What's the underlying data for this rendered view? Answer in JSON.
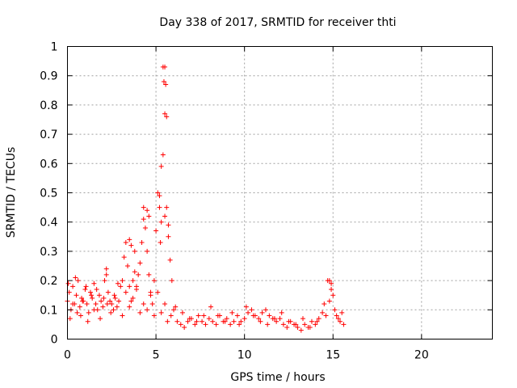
{
  "chart_data": {
    "type": "scatter",
    "title": "Day 338 of 2017, SRMTID for receiver thti",
    "xlabel": "GPS time / hours",
    "ylabel": "SRMTID / TECUs",
    "xlim": [
      0,
      24
    ],
    "ylim": [
      0,
      1
    ],
    "xticks": [
      0,
      5,
      10,
      15,
      20
    ],
    "xtick_labels": [
      "0",
      "5",
      "10",
      "15",
      "20"
    ],
    "yticks": [
      0,
      0.1,
      0.2,
      0.3,
      0.4,
      0.5,
      0.6,
      0.7,
      0.8,
      0.9,
      1
    ],
    "ytick_labels": [
      "0",
      "0.1",
      "0.2",
      "0.3",
      "0.4",
      "0.5",
      "0.6",
      "0.7",
      "0.8",
      "0.9",
      "1"
    ],
    "grid": true,
    "marker": "+",
    "color": "#ff0000",
    "series": [
      {
        "name": "SRMTID",
        "x": [
          0.0,
          0.1,
          0.2,
          0.3,
          0.4,
          0.5,
          0.6,
          0.7,
          0.8,
          0.9,
          1.0,
          1.1,
          1.2,
          1.3,
          1.4,
          1.5,
          1.6,
          1.7,
          1.8,
          1.9,
          2.0,
          2.1,
          2.2,
          2.3,
          2.4,
          2.5,
          2.6,
          2.7,
          2.8,
          2.9,
          3.0,
          3.1,
          3.2,
          3.3,
          3.4,
          3.5,
          3.6,
          3.7,
          3.8,
          3.9,
          4.0,
          4.1,
          4.2,
          4.3,
          4.4,
          4.5,
          4.6,
          4.7,
          4.8,
          4.9,
          5.0,
          5.1,
          5.2,
          5.3,
          5.4,
          5.45,
          5.5,
          5.6,
          5.7,
          5.8,
          5.9,
          6.0,
          6.2,
          6.4,
          6.6,
          6.8,
          7.0,
          7.2,
          7.4,
          7.6,
          7.8,
          8.0,
          8.2,
          8.4,
          8.6,
          8.8,
          9.0,
          9.2,
          9.4,
          9.6,
          9.8,
          10.0,
          10.2,
          10.4,
          10.6,
          10.8,
          11.0,
          11.2,
          11.4,
          11.6,
          11.8,
          12.0,
          12.2,
          12.4,
          12.6,
          12.8,
          13.0,
          13.2,
          13.4,
          13.6,
          13.8,
          14.0,
          14.2,
          14.4,
          14.6,
          14.8,
          14.9,
          15.0,
          15.2,
          15.4,
          15.6,
          0.05,
          0.15,
          0.3,
          0.45,
          0.55,
          0.75,
          0.85,
          1.05,
          1.15,
          1.35,
          1.5,
          1.65,
          1.85,
          2.05,
          2.25,
          2.45,
          2.65,
          2.85,
          3.1,
          3.3,
          3.5,
          3.7,
          3.9,
          4.1,
          4.3,
          4.5,
          4.7,
          4.9,
          5.1,
          5.3,
          5.5,
          5.65,
          5.85,
          6.1,
          6.5,
          6.9,
          7.3,
          7.7,
          8.1,
          8.5,
          8.9,
          9.3,
          9.7,
          10.1,
          10.5,
          10.9,
          11.3,
          11.7,
          12.1,
          12.5,
          12.9,
          13.3,
          13.7,
          14.1,
          14.5,
          14.7,
          15.1,
          15.3,
          15.5
        ],
        "y": [
          0.13,
          0.16,
          0.1,
          0.18,
          0.12,
          0.15,
          0.2,
          0.11,
          0.14,
          0.13,
          0.17,
          0.12,
          0.09,
          0.16,
          0.14,
          0.19,
          0.12,
          0.1,
          0.15,
          0.13,
          0.11,
          0.2,
          0.22,
          0.16,
          0.13,
          0.12,
          0.1,
          0.14,
          0.11,
          0.13,
          0.18,
          0.2,
          0.28,
          0.33,
          0.25,
          0.18,
          0.13,
          0.2,
          0.23,
          0.17,
          0.22,
          0.26,
          0.33,
          0.41,
          0.38,
          0.3,
          0.22,
          0.16,
          0.12,
          0.2,
          0.37,
          0.5,
          0.45,
          0.4,
          0.93,
          0.88,
          0.77,
          0.45,
          0.39,
          0.27,
          0.2,
          0.1,
          0.06,
          0.05,
          0.04,
          0.06,
          0.07,
          0.05,
          0.08,
          0.06,
          0.05,
          0.07,
          0.06,
          0.05,
          0.08,
          0.06,
          0.07,
          0.05,
          0.06,
          0.08,
          0.06,
          0.07,
          0.09,
          0.1,
          0.08,
          0.07,
          0.09,
          0.1,
          0.08,
          0.07,
          0.06,
          0.07,
          0.05,
          0.04,
          0.06,
          0.05,
          0.04,
          0.03,
          0.05,
          0.04,
          0.06,
          0.05,
          0.07,
          0.09,
          0.08,
          0.13,
          0.19,
          0.15,
          0.08,
          0.06,
          0.05,
          0.19,
          0.07,
          0.12,
          0.21,
          0.09,
          0.08,
          0.13,
          0.18,
          0.06,
          0.15,
          0.1,
          0.17,
          0.07,
          0.14,
          0.12,
          0.09,
          0.15,
          0.19,
          0.08,
          0.16,
          0.11,
          0.14,
          0.18,
          0.09,
          0.12,
          0.1,
          0.15,
          0.08,
          0.16,
          0.09,
          0.12,
          0.06,
          0.08,
          0.11,
          0.09,
          0.07,
          0.06,
          0.08,
          0.11,
          0.08,
          0.06,
          0.09,
          0.05,
          0.11,
          0.08,
          0.06,
          0.05,
          0.07,
          0.09,
          0.06,
          0.05,
          0.07,
          0.04,
          0.06,
          0.12,
          0.2,
          0.1,
          0.07,
          0.09
        ]
      }
    ],
    "extra_points": {
      "x": [
        3.5,
        3.8,
        4.3,
        4.6,
        5.2,
        5.5,
        5.55,
        5.6,
        5.4,
        5.3,
        5.5,
        5.25,
        5.7,
        3.6,
        4.5,
        2.2,
        14.8,
        14.9
      ],
      "y": [
        0.34,
        0.3,
        0.45,
        0.42,
        0.49,
        0.93,
        0.87,
        0.76,
        0.63,
        0.59,
        0.42,
        0.33,
        0.35,
        0.32,
        0.44,
        0.24,
        0.2,
        0.17
      ]
    }
  }
}
